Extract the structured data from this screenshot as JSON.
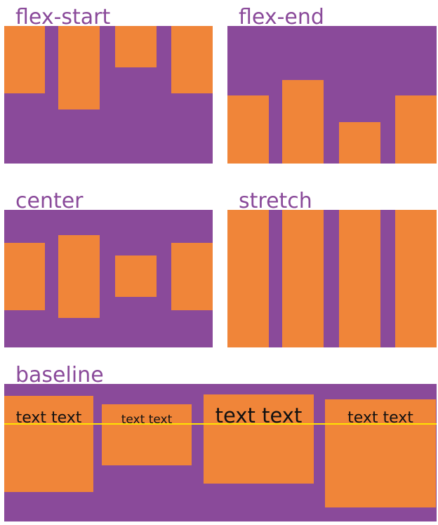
{
  "colors": {
    "panel": "#8a4a9a",
    "item": "#f08539",
    "label": "#8a4a9a",
    "baseline_line": "#ffe300",
    "text": "#111111"
  },
  "panels": {
    "flex_start": {
      "label": "flex-start"
    },
    "flex_end": {
      "label": "flex-end"
    },
    "center": {
      "label": "center"
    },
    "stretch": {
      "label": "stretch"
    },
    "baseline": {
      "label": "baseline",
      "items": [
        {
          "text": "text text"
        },
        {
          "text": "text text"
        },
        {
          "text": "text text"
        },
        {
          "text": "text text"
        }
      ]
    }
  }
}
